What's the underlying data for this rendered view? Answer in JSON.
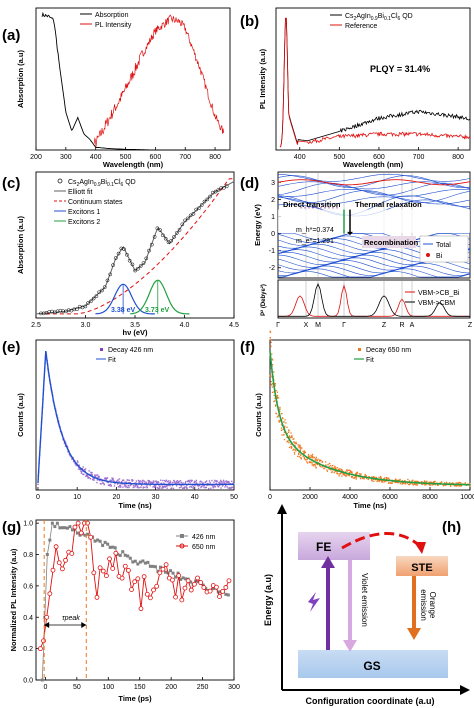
{
  "panels": {
    "a": {
      "label": "(a)",
      "ylabel": "Absorption (a.u)",
      "xlabel": "Wavelength (nm)",
      "xticks": [
        "200",
        "300",
        "400",
        "500",
        "600",
        "700",
        "800"
      ],
      "legend": [
        "Absorption",
        "PL Intensity"
      ]
    },
    "b": {
      "label": "(b)",
      "ylabel": "PL Intensity (a.u)",
      "xlabel": "Wavelength (nm)",
      "xticks": [
        "400",
        "500",
        "600",
        "700",
        "800"
      ],
      "legend": [
        "Cs2AgIn0.9Bi0.1Cl6 QD",
        "Reference"
      ],
      "annotation": "PLQY = 31.4%"
    },
    "c": {
      "label": "(c)",
      "ylabel": "Absorption (a.u)",
      "xlabel": "hν (eV)",
      "xticks": [
        "2.5",
        "3.0",
        "3.5",
        "4.0",
        "4.5"
      ],
      "legend": [
        "Cs2AgIn0.9Bi0.1Cl6 QD",
        "Elliott fit",
        "Continuum states",
        "Excitons 1",
        "Excitons 2"
      ],
      "peak1": "3.38 eV",
      "peak2": "3.73 eV"
    },
    "d": {
      "label": "(d)",
      "ylabel_top": "Energy (eV)",
      "ylabel_bottom": "P² (Debye²)",
      "yticks_top": [
        "3",
        "2",
        "1",
        "0",
        "-1",
        "-2"
      ],
      "kpoints": [
        "Γ",
        "X",
        "M",
        "Γ",
        "Z",
        "R",
        "A",
        "Z"
      ],
      "texts": [
        "Direct transition",
        "Thermal relaxation",
        "Recombination",
        "m_h*=0.374",
        "m_e*=1.291"
      ],
      "legend_top": [
        "Total",
        "Bi"
      ],
      "legend_bottom": [
        "VBM->CB_Bi",
        "VBM->CBM"
      ]
    },
    "e": {
      "label": "(e)",
      "ylabel": "Counts (a.u)",
      "xlabel": "Time (ns)",
      "xticks": [
        "0",
        "10",
        "20",
        "30",
        "40",
        "50"
      ],
      "legend": [
        "Decay 426 nm",
        "Fit"
      ]
    },
    "f": {
      "label": "(f)",
      "ylabel": "Counts (a.u)",
      "xlabel": "Time (ns)",
      "xticks": [
        "0",
        "2000",
        "4000",
        "6000",
        "8000",
        "10000"
      ],
      "legend": [
        "Decay 650 nm",
        "Fit"
      ]
    },
    "g": {
      "label": "(g)",
      "ylabel": "Normalized PL Intensity (a.u)",
      "xlabel": "Time (ps)",
      "xticks": [
        "0",
        "50",
        "100",
        "150",
        "200",
        "250",
        "300"
      ],
      "yticks": [
        "0.0",
        "0.2",
        "0.4",
        "0.6",
        "0.8",
        "1.0"
      ],
      "legend": [
        "426 nm",
        "650 nm"
      ],
      "tau": "τpeak"
    },
    "h": {
      "label": "(h)",
      "ylabel": "Energy (a.u)",
      "xlabel": "Configuration coordinate (a.u)",
      "states": [
        "FE",
        "STE",
        "GS"
      ],
      "emissions": [
        "Violet emission",
        "Orange emission"
      ]
    }
  },
  "colors": {
    "black": "#000000",
    "red": "#e01010",
    "blue": "#2050d0",
    "green": "#20a040",
    "orange": "#f07820",
    "purple": "#8040c0",
    "gray": "#808080"
  },
  "chart_data": [
    {
      "type": "line",
      "panel": "a",
      "series": [
        {
          "name": "Absorption",
          "x": [
            220,
            240,
            260,
            280,
            300,
            320,
            340,
            360,
            380,
            400,
            450,
            500,
            600,
            700,
            800
          ],
          "y": [
            1.0,
            0.99,
            0.96,
            0.6,
            0.28,
            0.14,
            0.24,
            0.12,
            0.08,
            0.02,
            0.01,
            0.005,
            0,
            0,
            0
          ]
        },
        {
          "name": "PL Intensity",
          "x": [
            400,
            450,
            500,
            550,
            600,
            650,
            680,
            700,
            750,
            800,
            830
          ],
          "y": [
            0.05,
            0.25,
            0.45,
            0.68,
            0.88,
            0.97,
            0.95,
            0.9,
            0.6,
            0.25,
            0.12
          ]
        }
      ],
      "xlim": [
        200,
        850
      ]
    },
    {
      "type": "line",
      "panel": "b",
      "series": [
        {
          "name": "Cs2AgIn0.9Bi0.1Cl6 QD",
          "x": [
            355,
            365,
            375,
            390,
            420,
            500,
            600,
            700,
            800,
            830
          ],
          "y": [
            0.4,
            1.0,
            0.35,
            0.06,
            0.05,
            0.12,
            0.22,
            0.27,
            0.23,
            0.21
          ]
        },
        {
          "name": "Reference",
          "x": [
            355,
            365,
            375,
            390,
            420,
            500,
            600,
            700,
            800,
            830
          ],
          "y": [
            0.4,
            1.0,
            0.35,
            0.05,
            0.04,
            0.08,
            0.1,
            0.1,
            0.08,
            0.08
          ]
        }
      ],
      "xlim": [
        340,
        830
      ]
    },
    {
      "type": "line",
      "panel": "c",
      "series": [
        {
          "name": "Elliott fit",
          "x": [
            2.5,
            2.8,
            3.0,
            3.2,
            3.3,
            3.38,
            3.5,
            3.6,
            3.73,
            3.85,
            4.0,
            4.3,
            4.5
          ],
          "y": [
            0.0,
            0.02,
            0.06,
            0.2,
            0.4,
            0.5,
            0.32,
            0.38,
            0.64,
            0.52,
            0.68,
            0.9,
            0.98
          ]
        },
        {
          "name": "Excitons 1",
          "x": [
            3.1,
            3.25,
            3.38,
            3.5,
            3.65
          ],
          "y": [
            0,
            0.1,
            0.22,
            0.1,
            0
          ]
        },
        {
          "name": "Excitons 2",
          "x": [
            3.45,
            3.6,
            3.73,
            3.86,
            4.0
          ],
          "y": [
            0,
            0.1,
            0.25,
            0.1,
            0
          ]
        }
      ],
      "xlim": [
        2.5,
        4.5
      ]
    },
    {
      "type": "line",
      "panel": "e",
      "series": [
        {
          "name": "Decay 426 nm",
          "x": [
            0,
            1,
            2,
            3,
            5,
            8,
            12,
            20,
            30,
            50
          ],
          "y": [
            0.1,
            0.8,
            1.0,
            0.9,
            0.65,
            0.35,
            0.15,
            0.06,
            0.04,
            0.04
          ]
        }
      ],
      "xlim": [
        0,
        50
      ]
    },
    {
      "type": "scatter",
      "panel": "f",
      "series": [
        {
          "name": "Decay 650 nm",
          "x": [
            0,
            200,
            500,
            1000,
            2000,
            3000,
            4000,
            5000,
            6000,
            8000,
            10000
          ],
          "y": [
            1.0,
            0.85,
            0.7,
            0.55,
            0.37,
            0.25,
            0.16,
            0.1,
            0.07,
            0.05,
            0.04
          ]
        }
      ],
      "xlim": [
        0,
        10000
      ]
    },
    {
      "type": "line",
      "panel": "g",
      "series": [
        {
          "name": "426 nm",
          "x": [
            0,
            10,
            20,
            50,
            100,
            150,
            200,
            250,
            290
          ],
          "y": [
            0.6,
            1.0,
            0.98,
            0.95,
            0.85,
            0.75,
            0.68,
            0.6,
            0.55
          ]
        },
        {
          "name": "650 nm",
          "x": [
            -5,
            5,
            15,
            30,
            50,
            65,
            80,
            100,
            150,
            200,
            250,
            290
          ],
          "y": [
            0.1,
            0.55,
            0.85,
            0.8,
            0.9,
            1.0,
            0.6,
            0.75,
            0.55,
            0.65,
            0.55,
            0.6
          ]
        }
      ],
      "xlim": [
        -15,
        300
      ],
      "ylim": [
        0,
        1.0
      ]
    }
  ]
}
